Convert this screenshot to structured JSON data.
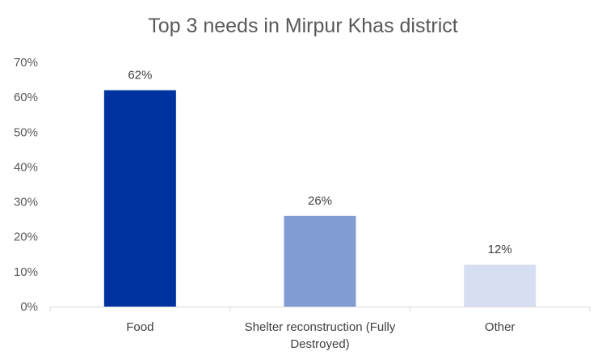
{
  "chart_data": {
    "type": "bar",
    "title": "Top 3 needs in Mirpur Khas district",
    "categories": [
      "Food",
      "Shelter reconstruction (Fully Destroyed)",
      "Other"
    ],
    "category_label_lines": [
      [
        "Food"
      ],
      [
        "Shelter reconstruction (Fully",
        "Destroyed)"
      ],
      [
        "Other"
      ]
    ],
    "values": [
      62,
      26,
      12
    ],
    "value_labels": [
      "62%",
      "26%",
      "12%"
    ],
    "bar_colors": [
      "#0033a0",
      "#819bd3",
      "#d6def1"
    ],
    "ylim": [
      0,
      70
    ],
    "yticks": [
      0,
      10,
      20,
      30,
      40,
      50,
      60,
      70
    ],
    "ytick_labels": [
      "0%",
      "10%",
      "20%",
      "30%",
      "40%",
      "50%",
      "60%",
      "70%"
    ],
    "xlabel": "",
    "ylabel": "",
    "grid": false,
    "legend": "none",
    "colors": {
      "axis": "#d9d9d9",
      "tick_text": "#595959",
      "label_text": "#404040",
      "title_text": "#595959"
    }
  }
}
